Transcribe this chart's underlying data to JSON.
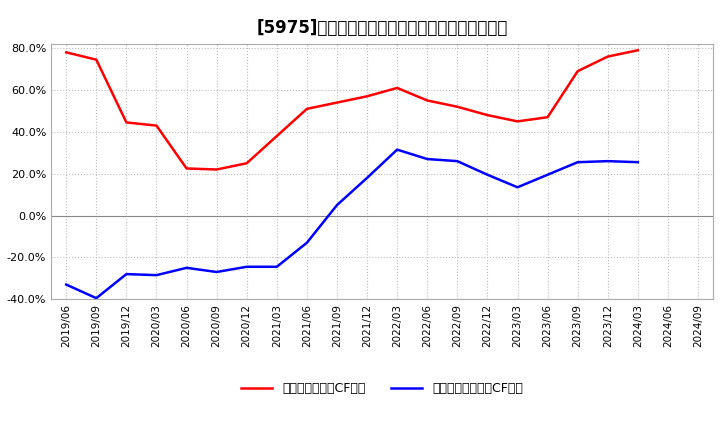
{
  "title": "[5975]　有利子負債キャッシュフロー比率の推移",
  "legend_red": "有利子負債営業CF比率",
  "legend_blue": "有利子負債フリーCF比率",
  "ylim": [
    -40.0,
    82.0
  ],
  "yticks": [
    -40.0,
    -20.0,
    0.0,
    20.0,
    40.0,
    60.0,
    80.0
  ],
  "xtick_labels": [
    "2019/06",
    "2019/09",
    "2019/12",
    "2020/03",
    "2020/06",
    "2020/09",
    "2020/12",
    "2021/03",
    "2021/06",
    "2021/09",
    "2021/12",
    "2022/03",
    "2022/06",
    "2022/09",
    "2022/12",
    "2023/03",
    "2023/06",
    "2023/09",
    "2023/12",
    "2024/03",
    "2024/06",
    "2024/09"
  ],
  "red_values": [
    78.0,
    74.5,
    44.5,
    43.0,
    22.5,
    22.0,
    25.0,
    38.0,
    51.0,
    54.0,
    57.0,
    61.0,
    55.0,
    52.0,
    48.0,
    45.0,
    47.0,
    69.0,
    76.0,
    79.0,
    null,
    null
  ],
  "blue_values": [
    -33.0,
    -39.5,
    -28.0,
    -28.5,
    -25.0,
    -27.0,
    -24.5,
    -24.5,
    -13.0,
    5.0,
    18.0,
    31.5,
    27.0,
    26.0,
    19.5,
    13.5,
    19.5,
    25.5,
    26.0,
    25.5,
    null,
    null
  ],
  "background_color": "#ffffff",
  "grid_color": "#bbbbbb",
  "line_color_red": "#ff0000",
  "line_color_blue": "#0000ff",
  "zero_line_color": "#888888",
  "title_fontsize": 12,
  "tick_fontsize": 7.5,
  "legend_fontsize": 9
}
